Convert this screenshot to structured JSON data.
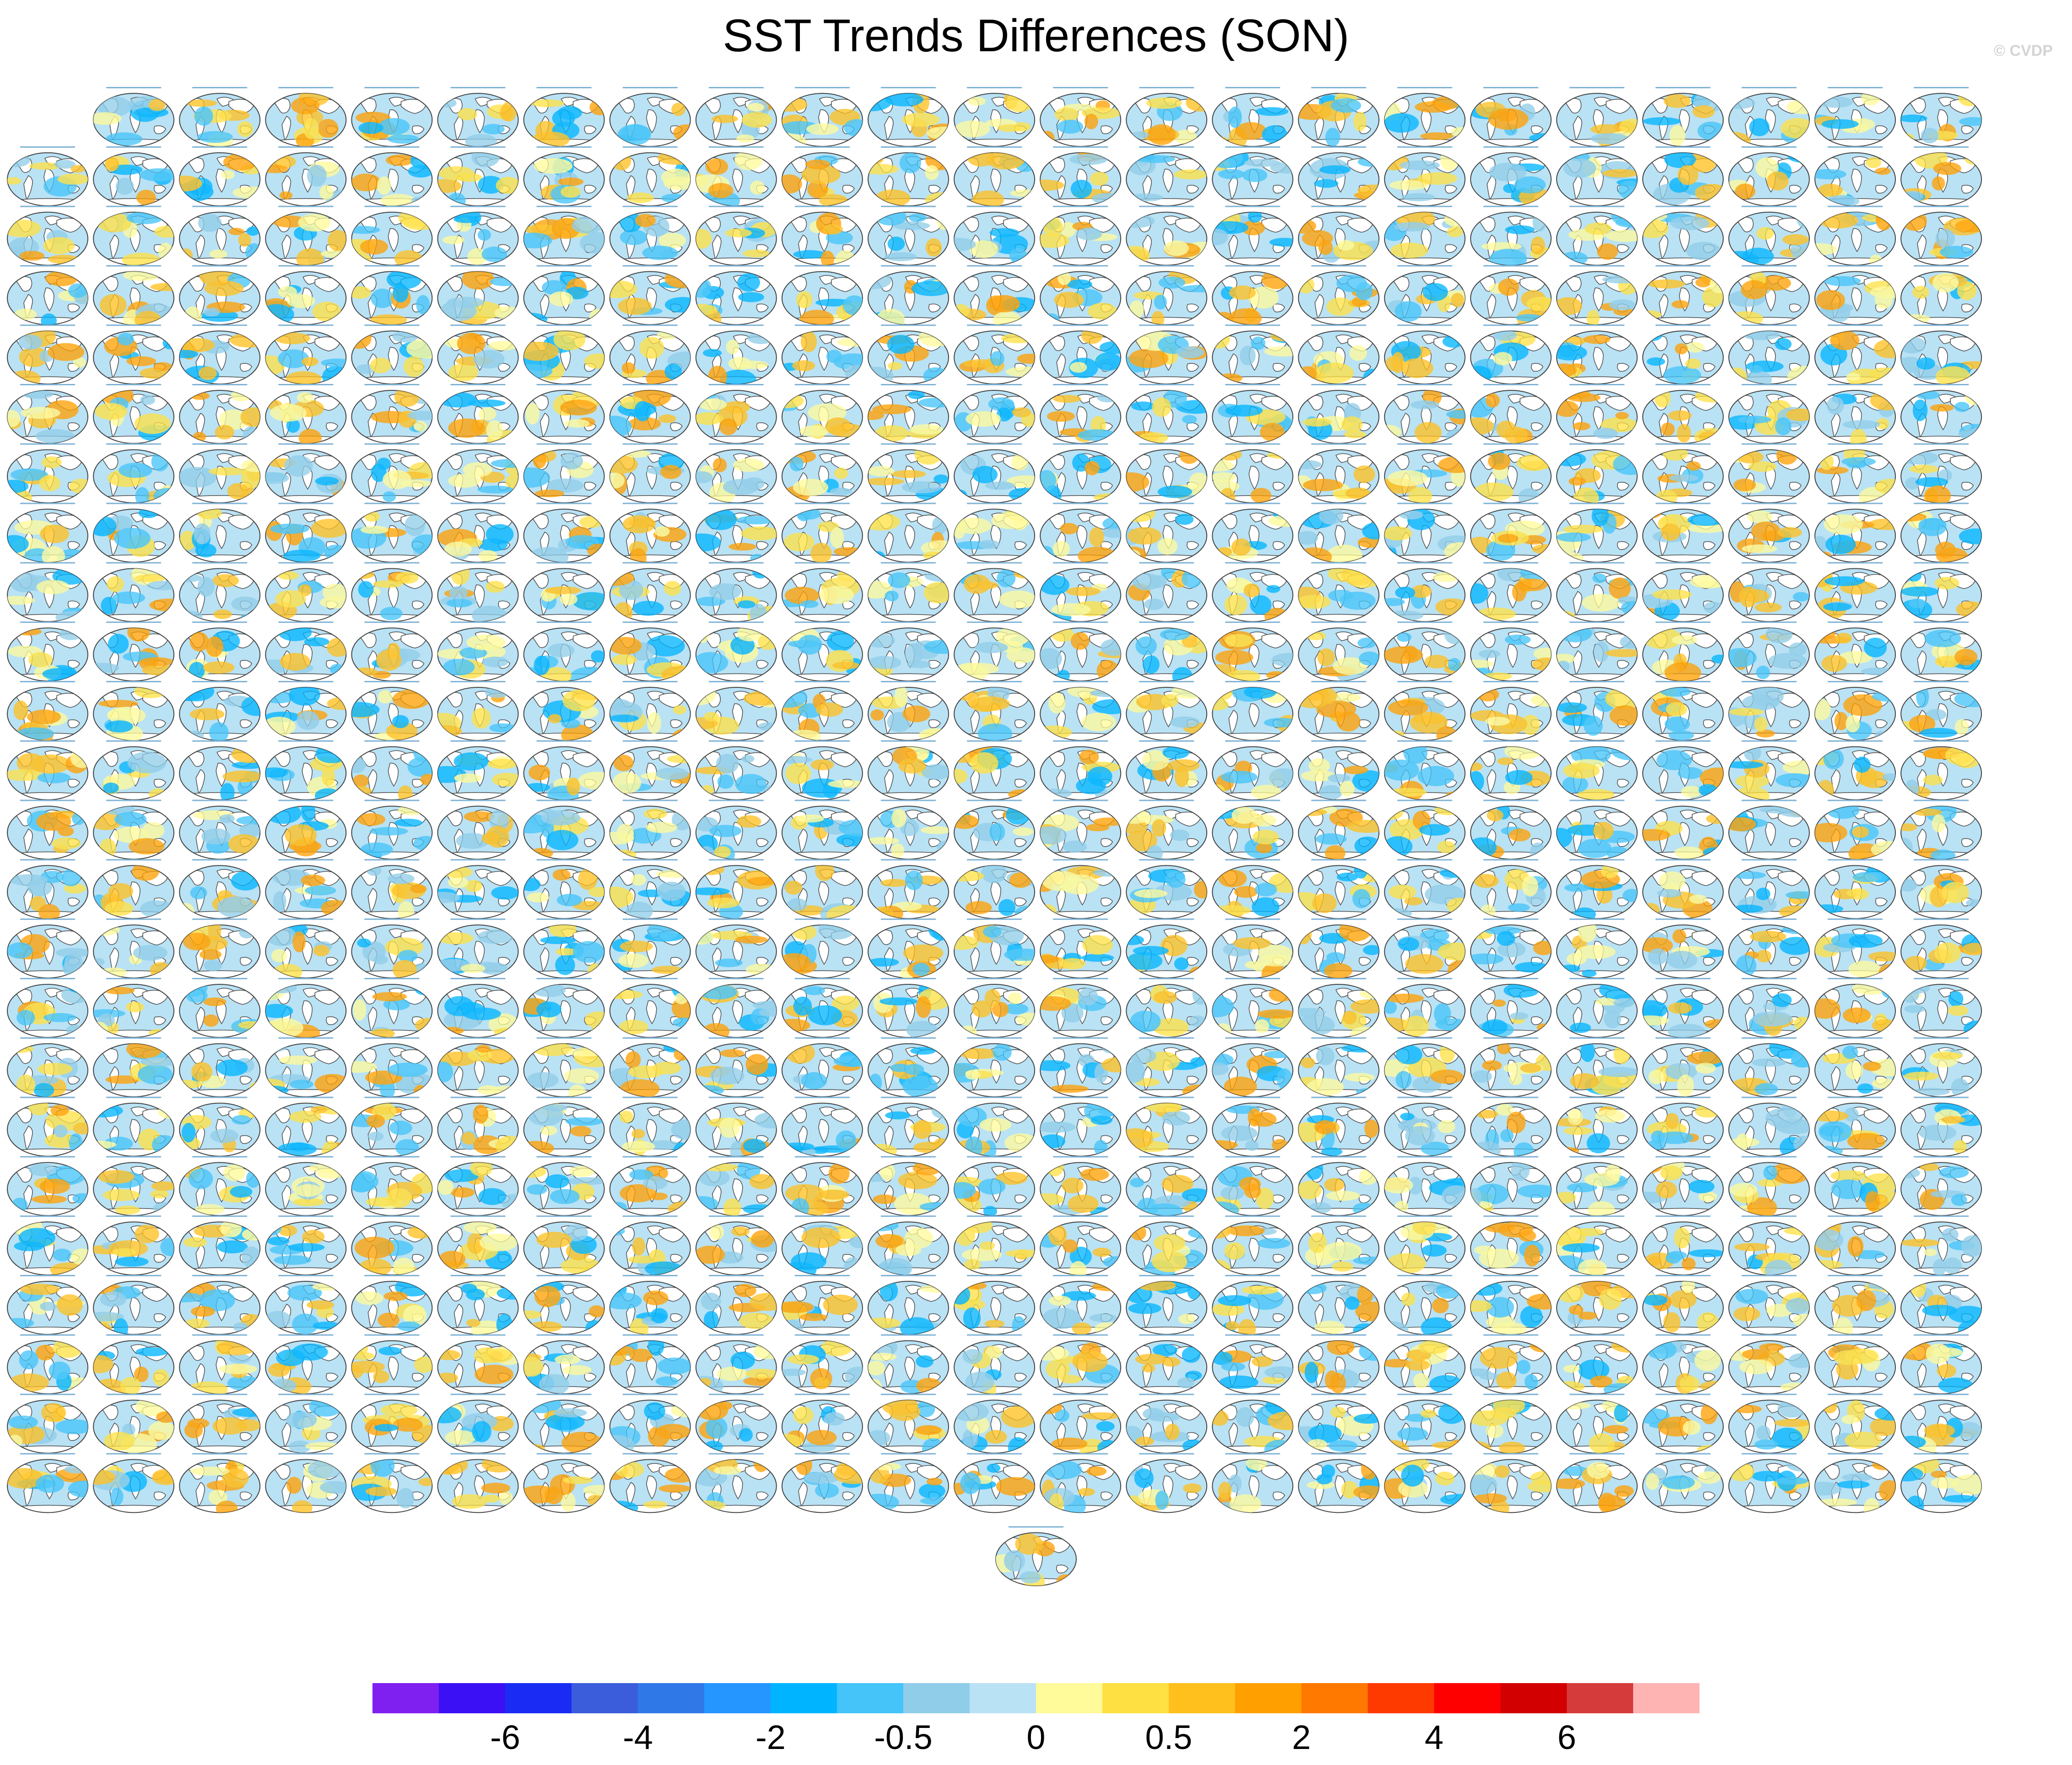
{
  "title": "SST Trends Differences (SON)",
  "watermark": "© CVDP",
  "chart_data": {
    "type": "heatmap",
    "layout": {
      "columns": 23,
      "rows": 25,
      "first_row_count": 22,
      "last_row_count": 1
    },
    "map_panels": {
      "projection": "robinson",
      "content": "global SST trend difference map"
    },
    "colorbar": {
      "colors": [
        "#7f1ff0",
        "#3c10f4",
        "#1a2cf4",
        "#3b5ddc",
        "#2f78e8",
        "#2596ff",
        "#00b4ff",
        "#44c4f8",
        "#90cde9",
        "#b9e2f5",
        "#fffa9a",
        "#ffe043",
        "#ffc01e",
        "#ffa000",
        "#ff7800",
        "#ff3a00",
        "#ff0000",
        "#d20000",
        "#d63b3b",
        "#ffb4b4"
      ],
      "tick_labels": [
        "-6",
        "-4",
        "-2",
        "-0.5",
        "0",
        "0.5",
        "2",
        "4",
        "6"
      ]
    }
  }
}
